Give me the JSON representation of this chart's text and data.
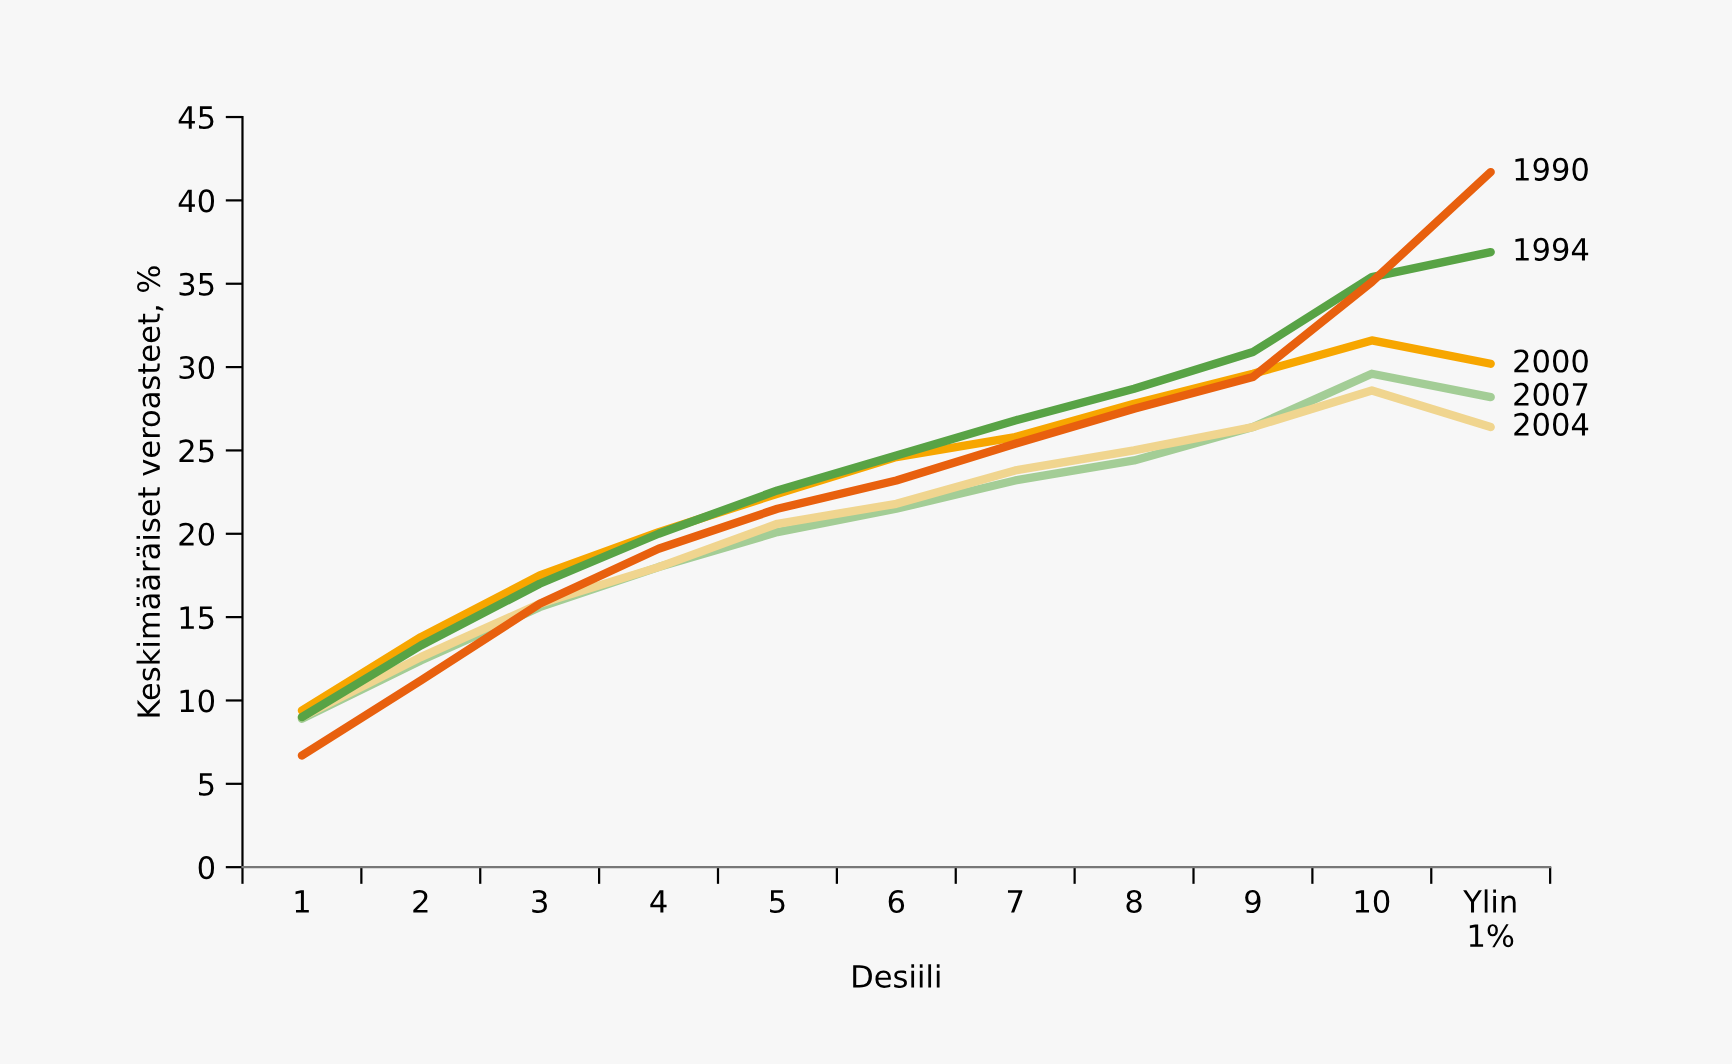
{
  "chart_data": {
    "type": "line",
    "xlabel": "Desiili",
    "ylabel": "Keskimääräiset veroasteet, %",
    "categories": [
      "1",
      "2",
      "3",
      "4",
      "5",
      "6",
      "7",
      "8",
      "9",
      "10",
      "Ylin\n1%"
    ],
    "ylim": [
      0,
      45
    ],
    "yticks": [
      0,
      5,
      10,
      15,
      20,
      25,
      30,
      35,
      40,
      45
    ],
    "grid": false,
    "legend": false,
    "marker": "none",
    "line_style": "solid",
    "series": [
      {
        "name": "2007",
        "color": "#a3cd96",
        "values": [
          8.9,
          12.4,
          15.6,
          18.0,
          20.1,
          21.5,
          23.2,
          24.4,
          26.4,
          29.6,
          28.2
        ]
      },
      {
        "name": "2004",
        "color": "#f0d58f",
        "values": [
          9.0,
          12.6,
          15.8,
          18.0,
          20.6,
          21.8,
          23.8,
          25.0,
          26.4,
          28.6,
          26.4
        ]
      },
      {
        "name": "2000",
        "color": "#f7a600",
        "values": [
          9.4,
          13.8,
          17.5,
          20.1,
          22.4,
          24.6,
          25.8,
          27.8,
          29.6,
          31.6,
          30.2
        ]
      },
      {
        "name": "1994",
        "color": "#58a345",
        "values": [
          9.0,
          13.3,
          17.0,
          20.0,
          22.6,
          24.7,
          26.8,
          28.7,
          30.9,
          35.4,
          36.9
        ]
      },
      {
        "name": "1990",
        "color": "#e8600e",
        "values": [
          6.7,
          11.2,
          15.8,
          19.1,
          21.5,
          23.2,
          25.4,
          27.5,
          29.4,
          35.1,
          41.7
        ]
      }
    ]
  }
}
